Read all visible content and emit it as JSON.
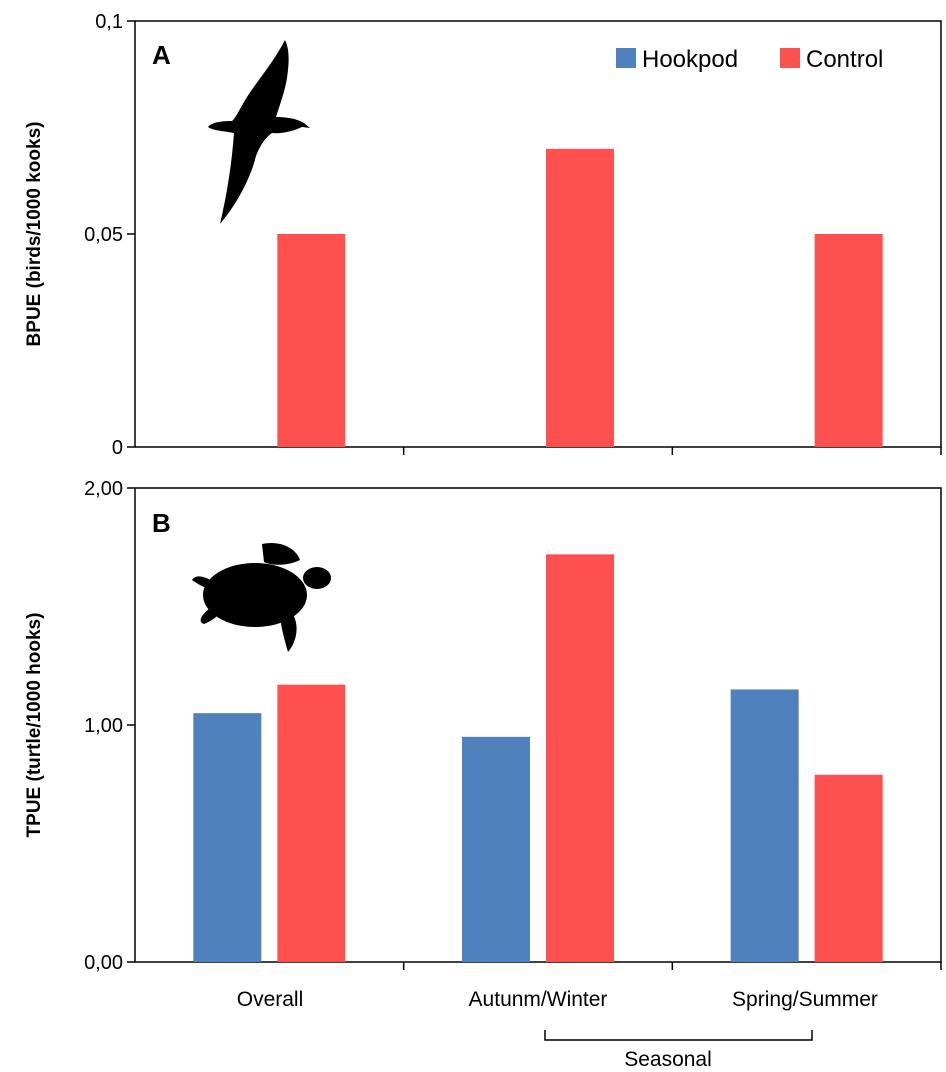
{
  "legend": {
    "hookpod": "Hookpod",
    "control": "Control"
  },
  "colors": {
    "hookpod": "#4f81bd",
    "control": "#ff5050"
  },
  "bracket_label": "Seasonal",
  "chart_data": [
    {
      "type": "bar",
      "panel": "A",
      "icon": "albatross-silhouette-icon",
      "ylabel": "BPUE (birds/1000 kooks)",
      "ylim": [
        0,
        0.1
      ],
      "yticks": [
        "0",
        "0,05",
        "0,1"
      ],
      "categories": [
        "Overall",
        "Autunm/Winter",
        "Spring/Summer"
      ],
      "series": [
        {
          "name": "Hookpod",
          "values": [
            0,
            0,
            0
          ]
        },
        {
          "name": "Control",
          "values": [
            0.05,
            0.07,
            0.05
          ]
        }
      ],
      "legend_position": "top-right",
      "grid": false
    },
    {
      "type": "bar",
      "panel": "B",
      "icon": "sea-turtle-silhouette-icon",
      "ylabel": "TPUE (turtle/1000 hooks)",
      "ylim": [
        0,
        2.0
      ],
      "yticks": [
        "0,00",
        "1,00",
        "2,00"
      ],
      "categories": [
        "Overall",
        "Autunm/Winter",
        "Spring/Summer"
      ],
      "series": [
        {
          "name": "Hookpod",
          "values": [
            1.05,
            0.95,
            1.15
          ]
        },
        {
          "name": "Control",
          "values": [
            1.17,
            1.72,
            0.79
          ]
        }
      ],
      "grid": false
    }
  ]
}
